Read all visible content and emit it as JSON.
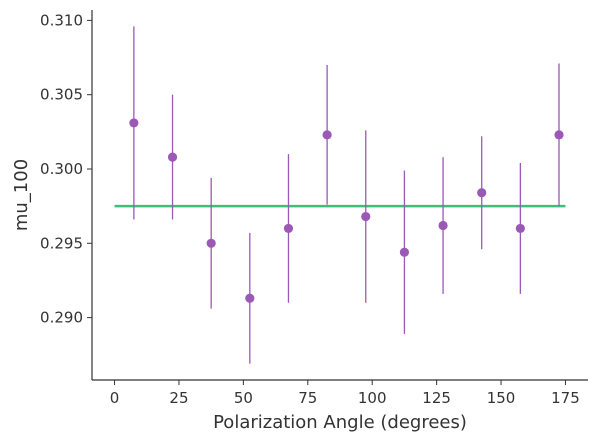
{
  "chart_data": {
    "type": "scatter",
    "title": "",
    "xlabel": "Polarization Angle (degrees)",
    "ylabel": "mu_100",
    "xlim": [
      -8.75,
      183.75
    ],
    "ylim": [
      0.2858,
      0.3107
    ],
    "xticks": [
      0,
      25,
      50,
      75,
      100,
      125,
      150,
      175
    ],
    "xtick_labels": [
      "0",
      "25",
      "50",
      "75",
      "100",
      "125",
      "150",
      "175"
    ],
    "yticks": [
      0.29,
      0.295,
      0.3,
      0.305,
      0.31
    ],
    "ytick_labels": [
      "0.290",
      "0.295",
      "0.300",
      "0.305",
      "0.310"
    ],
    "grid": false,
    "series": [
      {
        "kind": "errorbar",
        "color": "#9b59b6",
        "x": [
          7.5,
          22.5,
          37.5,
          52.5,
          67.5,
          82.5,
          97.5,
          112.5,
          127.5,
          142.5,
          157.5,
          172.5
        ],
        "y": [
          0.3031,
          0.3008,
          0.295,
          0.2913,
          0.296,
          0.3023,
          0.2968,
          0.2944,
          0.2962,
          0.2984,
          0.296,
          0.3023
        ],
        "yerr": [
          0.0065,
          0.0042,
          0.0044,
          0.0044,
          0.005,
          0.0047,
          0.0058,
          0.0055,
          0.0046,
          0.0038,
          0.0044,
          0.0048
        ]
      },
      {
        "kind": "line",
        "color": "#3dbf7a",
        "x": [
          0,
          175
        ],
        "y": [
          0.2975,
          0.2975
        ]
      }
    ]
  }
}
